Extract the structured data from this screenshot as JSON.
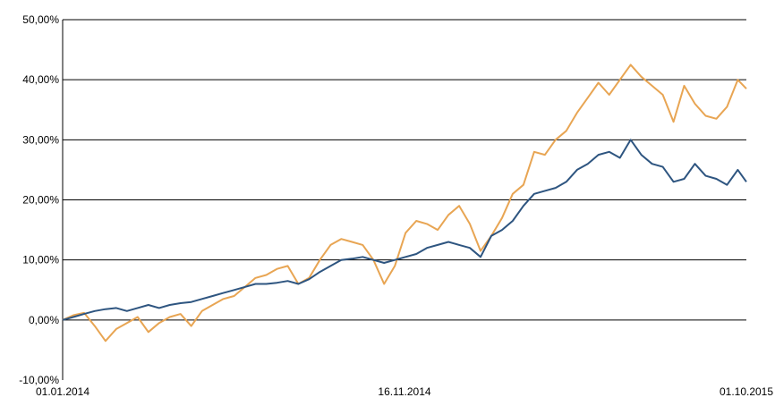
{
  "chart_data": {
    "type": "line",
    "title": "",
    "xlabel": "",
    "ylabel": "",
    "ylim": [
      -10,
      50
    ],
    "xlim": [
      "2014-01-01",
      "2015-10-01"
    ],
    "grid": "horizontal",
    "legend": "none",
    "y_ticks": [
      "-10,00%",
      "0,00%",
      "10,00%",
      "20,00%",
      "30,00%",
      "40,00%",
      "50,00%"
    ],
    "x_ticks": [
      "01.01.2014",
      "16.11.2014",
      "01.10.2015"
    ],
    "series": [
      {
        "color": "#E8A553",
        "x": [
          "2014-01-01",
          "2014-01-11",
          "2014-01-21",
          "2014-01-31",
          "2014-02-10",
          "2014-02-20",
          "2014-03-02",
          "2014-03-12",
          "2014-03-22",
          "2014-04-01",
          "2014-04-11",
          "2014-04-21",
          "2014-05-01",
          "2014-05-11",
          "2014-05-21",
          "2014-05-31",
          "2014-06-10",
          "2014-06-20",
          "2014-06-30",
          "2014-07-10",
          "2014-07-20",
          "2014-07-30",
          "2014-08-09",
          "2014-08-19",
          "2014-08-29",
          "2014-09-08",
          "2014-09-18",
          "2014-09-28",
          "2014-10-08",
          "2014-10-18",
          "2014-10-28",
          "2014-11-07",
          "2014-11-17",
          "2014-11-27",
          "2014-12-07",
          "2014-12-17",
          "2014-12-27",
          "2015-01-06",
          "2015-01-16",
          "2015-01-26",
          "2015-02-05",
          "2015-02-15",
          "2015-02-25",
          "2015-03-07",
          "2015-03-17",
          "2015-03-27",
          "2015-04-06",
          "2015-04-16",
          "2015-04-26",
          "2015-05-06",
          "2015-05-16",
          "2015-05-26",
          "2015-06-05",
          "2015-06-15",
          "2015-06-25",
          "2015-07-05",
          "2015-07-15",
          "2015-07-25",
          "2015-08-04",
          "2015-08-14",
          "2015-08-24",
          "2015-09-03",
          "2015-09-13",
          "2015-09-23",
          "2015-10-01"
        ],
        "values": [
          0.0,
          0.8,
          1.2,
          -1.0,
          -3.5,
          -1.5,
          -0.5,
          0.5,
          -2.0,
          -0.5,
          0.5,
          1.0,
          -1.0,
          1.5,
          2.5,
          3.5,
          4.0,
          5.5,
          7.0,
          7.5,
          8.5,
          9.0,
          6.0,
          7.0,
          10.0,
          12.5,
          13.5,
          13.0,
          12.5,
          10.0,
          6.0,
          9.0,
          14.5,
          16.5,
          16.0,
          15.0,
          17.5,
          19.0,
          16.0,
          11.5,
          14.0,
          17.0,
          21.0,
          22.5,
          28.0,
          27.5,
          30.0,
          31.5,
          34.5,
          37.0,
          39.5,
          37.5,
          40.0,
          42.5,
          40.5,
          39.0,
          37.5,
          33.0,
          39.0,
          36.0,
          34.0,
          33.5,
          35.5,
          40.0,
          38.5
        ]
      },
      {
        "color": "#2E5580",
        "x": [
          "2014-01-01",
          "2014-01-11",
          "2014-01-21",
          "2014-01-31",
          "2014-02-10",
          "2014-02-20",
          "2014-03-02",
          "2014-03-12",
          "2014-03-22",
          "2014-04-01",
          "2014-04-11",
          "2014-04-21",
          "2014-05-01",
          "2014-05-11",
          "2014-05-21",
          "2014-05-31",
          "2014-06-10",
          "2014-06-20",
          "2014-06-30",
          "2014-07-10",
          "2014-07-20",
          "2014-07-30",
          "2014-08-09",
          "2014-08-19",
          "2014-08-29",
          "2014-09-08",
          "2014-09-18",
          "2014-09-28",
          "2014-10-08",
          "2014-10-18",
          "2014-10-28",
          "2014-11-07",
          "2014-11-17",
          "2014-11-27",
          "2014-12-07",
          "2014-12-17",
          "2014-12-27",
          "2015-01-06",
          "2015-01-16",
          "2015-01-26",
          "2015-02-05",
          "2015-02-15",
          "2015-02-25",
          "2015-03-07",
          "2015-03-17",
          "2015-03-27",
          "2015-04-06",
          "2015-04-16",
          "2015-04-26",
          "2015-05-06",
          "2015-05-16",
          "2015-05-26",
          "2015-06-05",
          "2015-06-15",
          "2015-06-25",
          "2015-07-05",
          "2015-07-15",
          "2015-07-25",
          "2015-08-04",
          "2015-08-14",
          "2015-08-24",
          "2015-09-03",
          "2015-09-13",
          "2015-09-23",
          "2015-10-01"
        ],
        "values": [
          0.0,
          0.5,
          1.0,
          1.5,
          1.8,
          2.0,
          1.5,
          2.0,
          2.5,
          2.0,
          2.5,
          2.8,
          3.0,
          3.5,
          4.0,
          4.5,
          5.0,
          5.5,
          6.0,
          6.0,
          6.2,
          6.5,
          6.0,
          6.8,
          8.0,
          9.0,
          10.0,
          10.2,
          10.5,
          10.0,
          9.5,
          10.0,
          10.5,
          11.0,
          12.0,
          12.5,
          13.0,
          12.5,
          12.0,
          10.5,
          14.0,
          15.0,
          16.5,
          19.0,
          21.0,
          21.5,
          22.0,
          23.0,
          25.0,
          26.0,
          27.5,
          28.0,
          27.0,
          30.0,
          27.5,
          26.0,
          25.5,
          23.0,
          23.5,
          26.0,
          24.0,
          23.5,
          22.5,
          25.0,
          23.0
        ]
      }
    ]
  }
}
